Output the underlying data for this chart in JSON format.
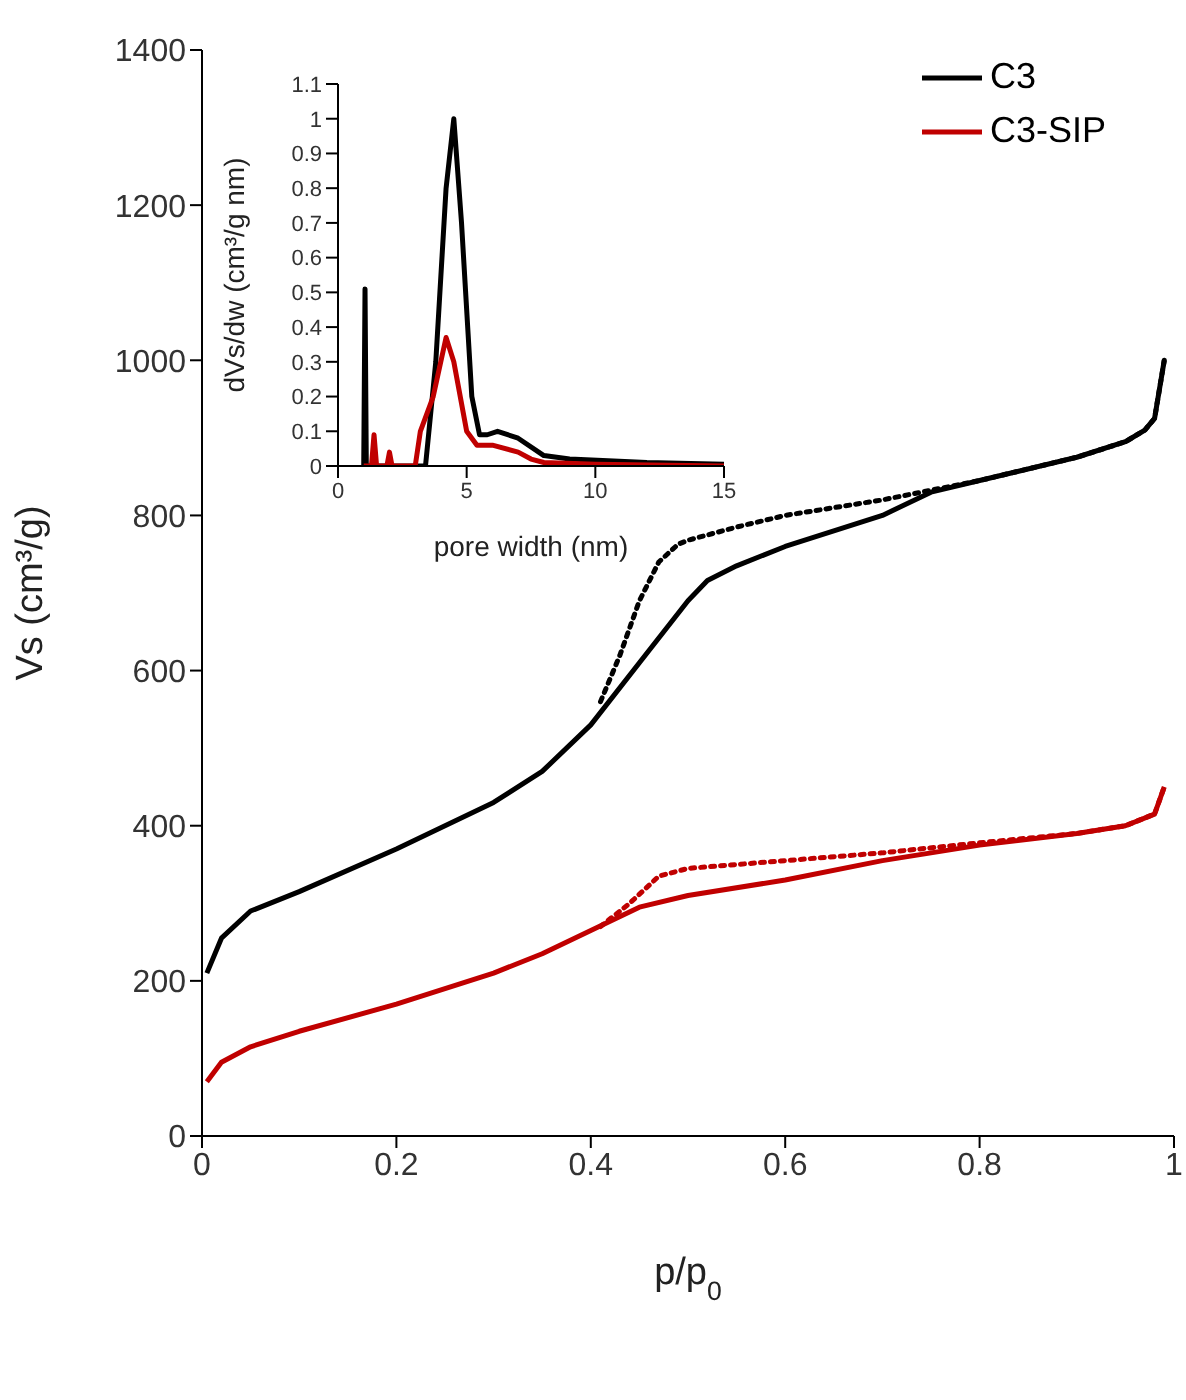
{
  "chart_data": [
    {
      "type": "line",
      "xlabel": "p/p$_{0}$",
      "ylabel": "Vs (cm³/g)",
      "xlim": [
        0,
        1
      ],
      "xticks": [
        0,
        0.2,
        0.4,
        0.6,
        0.8,
        1
      ],
      "ylim": [
        0,
        1400
      ],
      "yticks": [
        0,
        200,
        400,
        600,
        800,
        1000,
        1200,
        1400
      ],
      "legend": "top right",
      "marker": "none",
      "series": [
        {
          "name": "C3",
          "color": "#000000",
          "line_style": "solid",
          "x": [
            0.005,
            0.02,
            0.05,
            0.1,
            0.2,
            0.3,
            0.35,
            0.4,
            0.45,
            0.5,
            0.52,
            0.55,
            0.6,
            0.7,
            0.75,
            0.8,
            0.9,
            0.95,
            0.97,
            0.98,
            0.99
          ],
          "values": [
            210,
            255,
            290,
            315,
            370,
            430,
            470,
            530,
            610,
            690,
            716,
            735,
            760,
            800,
            830,
            845,
            875,
            895,
            910,
            925,
            1000
          ]
        },
        {
          "color": "#000000",
          "line_style": "dotted",
          "x": [
            0.41,
            0.43,
            0.45,
            0.47,
            0.49,
            0.5,
            0.55,
            0.6,
            0.67,
            0.7,
            0.8,
            0.9,
            0.95,
            0.97,
            0.98,
            0.99
          ],
          "values": [
            560,
            620,
            690,
            740,
            763,
            768,
            785,
            800,
            814,
            820,
            845,
            875,
            895,
            910,
            925,
            1000
          ]
        },
        {
          "name": "C3-SIP",
          "color": "#c00000",
          "line_style": "solid",
          "x": [
            0.005,
            0.02,
            0.05,
            0.1,
            0.2,
            0.3,
            0.35,
            0.4,
            0.45,
            0.5,
            0.6,
            0.7,
            0.8,
            0.9,
            0.95,
            0.98,
            0.99
          ],
          "values": [
            70,
            95,
            115,
            135,
            170,
            210,
            235,
            265,
            295,
            310,
            330,
            355,
            375,
            390,
            400,
            415,
            450
          ]
        },
        {
          "color": "#c00000",
          "line_style": "dotted",
          "x": [
            0.41,
            0.44,
            0.47,
            0.5,
            0.6,
            0.7,
            0.8,
            0.9,
            0.95,
            0.98,
            0.99
          ],
          "values": [
            270,
            300,
            335,
            345,
            355,
            365,
            378,
            390,
            400,
            415,
            450
          ]
        }
      ]
    },
    {
      "type": "line",
      "xlabel": "pore width (nm)",
      "ylabel": "dVs/dw (cm³/g nm)",
      "xlim": [
        0,
        15
      ],
      "xticks": [
        0,
        5,
        10,
        15
      ],
      "ylim": [
        0,
        1.1
      ],
      "yticks": [
        0,
        0.1,
        0.2,
        0.3,
        0.4,
        0.5,
        0.6,
        0.7,
        0.8,
        0.9,
        1,
        1.1
      ],
      "marker": "none",
      "series": [
        {
          "color": "#000000",
          "x": [
            1.0,
            1.05,
            1.1,
            3.4,
            3.8,
            4.2,
            4.5,
            4.8,
            5.2,
            5.5,
            5.8,
            6.2,
            7,
            8,
            9,
            12,
            15
          ],
          "values": [
            0,
            0.51,
            0,
            0,
            0.3,
            0.8,
            1.0,
            0.7,
            0.2,
            0.09,
            0.09,
            0.1,
            0.08,
            0.03,
            0.02,
            0.01,
            0.005
          ]
        },
        {
          "color": "#c00000",
          "x": [
            1.0,
            1.3,
            1.4,
            1.5,
            1.9,
            2.0,
            2.1,
            3.0,
            3.2,
            3.7,
            4.2,
            4.5,
            5.0,
            5.4,
            6,
            7,
            7.5,
            8,
            10,
            15
          ],
          "values": [
            0,
            0,
            0.09,
            0,
            0,
            0.04,
            0,
            0,
            0.1,
            0.2,
            0.37,
            0.3,
            0.1,
            0.06,
            0.06,
            0.04,
            0.02,
            0.01,
            0.005,
            0
          ]
        }
      ]
    }
  ]
}
